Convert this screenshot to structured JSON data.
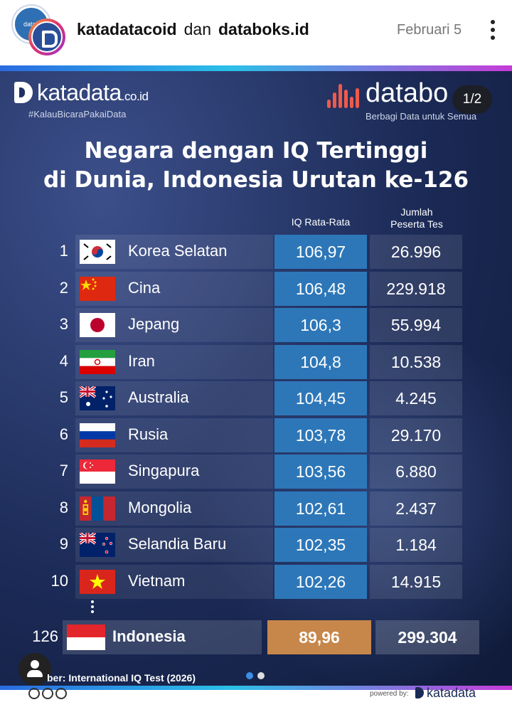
{
  "post": {
    "owner_one": "katadatacoid",
    "conjunction": "dan",
    "owner_two": "databoks.id",
    "date": "Februari 5",
    "avatar_back_text": "datab",
    "more_icon": "more-vertical-icon"
  },
  "infographic": {
    "katadata_brand": "katadata",
    "katadata_suffix": ".co.id",
    "katadata_tagline": "#KalauBicaraPakaiData",
    "databoks_brand": "databo",
    "databoks_tagline": "Berbagi Data untuk Semua",
    "slide_counter": "1/2",
    "title_line1": "Negara dengan IQ Tertinggi",
    "title_line2": "di Dunia, Indonesia Urutan ke-126",
    "column_iq": "IQ Rata-Rata",
    "column_tes_line1": "Jumlah",
    "column_tes_line2": "Peserta Tes",
    "rows": [
      {
        "rank": "1",
        "country": "Korea Selatan",
        "iq": "106,97",
        "tes": "26.996"
      },
      {
        "rank": "2",
        "country": "Cina",
        "iq": "106,48",
        "tes": "229.918"
      },
      {
        "rank": "3",
        "country": "Jepang",
        "iq": "106,3",
        "tes": "55.994"
      },
      {
        "rank": "4",
        "country": "Iran",
        "iq": "104,8",
        "tes": "10.538"
      },
      {
        "rank": "5",
        "country": "Australia",
        "iq": "104,45",
        "tes": "4.245"
      },
      {
        "rank": "6",
        "country": "Rusia",
        "iq": "103,78",
        "tes": "29.170"
      },
      {
        "rank": "7",
        "country": "Singapura",
        "iq": "103,56",
        "tes": "6.880"
      },
      {
        "rank": "8",
        "country": "Mongolia",
        "iq": "102,61",
        "tes": "2.437"
      },
      {
        "rank": "9",
        "country": "Selandia Baru",
        "iq": "102,35",
        "tes": "1.184"
      },
      {
        "rank": "10",
        "country": "Vietnam",
        "iq": "102,26",
        "tes": "14.915"
      }
    ],
    "indonesia": {
      "rank": "126",
      "country": "Indonesia",
      "iq": "89,96",
      "tes": "299.304"
    },
    "source": "ber: International IQ Test (2026)",
    "powered_by": "powered by:",
    "powered_brand": "katadata"
  },
  "colors": {
    "iq_cell": "#2d77b8",
    "indonesia_iq_cell": "#c7874a",
    "background": "#1b2a56",
    "accent_gradient": [
      "#2a6be0",
      "#2bc0e8",
      "#c63bd8"
    ],
    "page_dot_active": "#3b8fe6",
    "page_dot_inactive": "#dddddd"
  },
  "page_indicator": {
    "total": 2,
    "active": 1
  }
}
